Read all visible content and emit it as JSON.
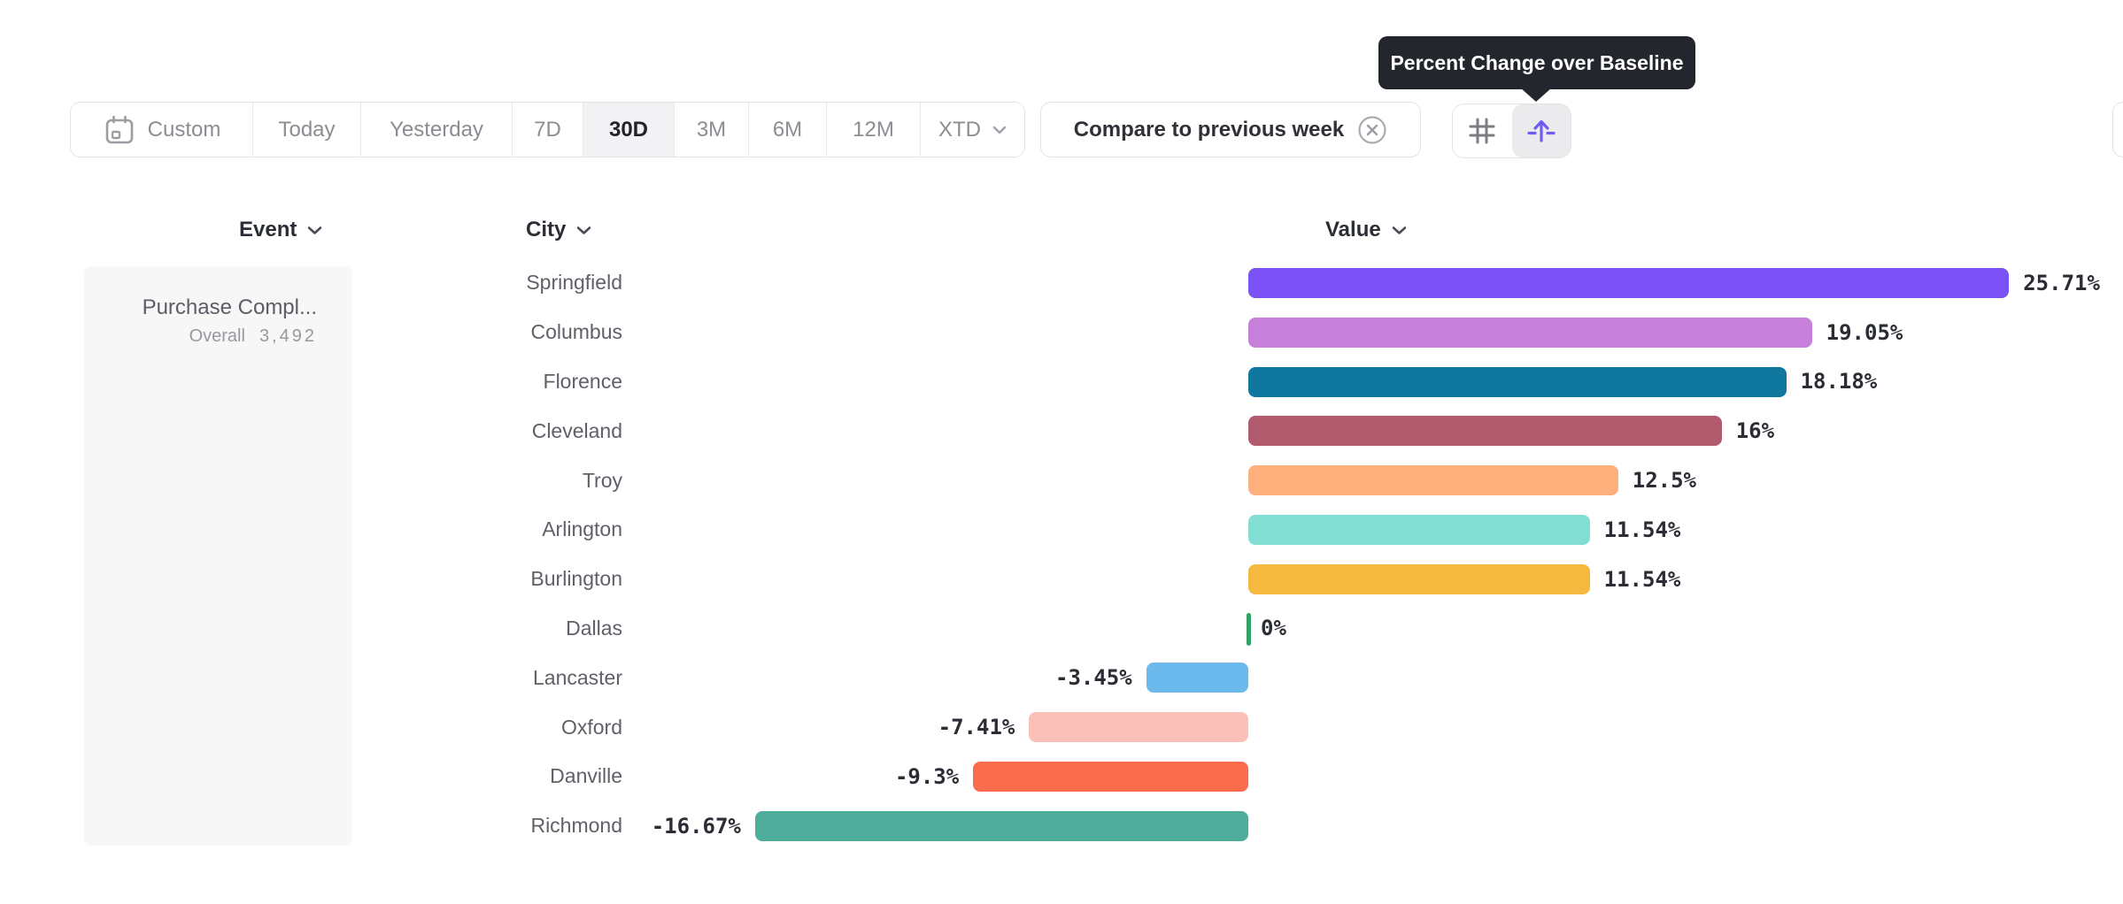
{
  "toolbar": {
    "date_ranges": [
      {
        "label": "Custom",
        "icon": "calendar",
        "selected": false
      },
      {
        "label": "Today",
        "selected": false
      },
      {
        "label": "Yesterday",
        "selected": false
      },
      {
        "label": "7D",
        "selected": false
      },
      {
        "label": "30D",
        "selected": true
      },
      {
        "label": "3M",
        "selected": false
      },
      {
        "label": "6M",
        "selected": false
      },
      {
        "label": "12M",
        "selected": false
      },
      {
        "label": "XTD",
        "selected": false,
        "has_dropdown": true
      }
    ],
    "compare_chip_label": "Compare to previous week",
    "view_modes": [
      {
        "name": "grid-view",
        "selected": false
      },
      {
        "name": "percent-change-view",
        "selected": true
      }
    ]
  },
  "tooltip_text": "Percent Change over Baseline",
  "columns": {
    "event": "Event",
    "city": "City",
    "value": "Value"
  },
  "event_panel": {
    "event_name": "Purchase Compl...",
    "overall_label": "Overall",
    "overall_value": "3,492"
  },
  "chart_data": {
    "type": "bar",
    "orientation": "horizontal",
    "title": "Percent Change over Baseline",
    "unit": "%",
    "categories": [
      "Springfield",
      "Columbus",
      "Florence",
      "Cleveland",
      "Troy",
      "Arlington",
      "Burlington",
      "Dallas",
      "Lancaster",
      "Oxford",
      "Danville",
      "Richmond"
    ],
    "values": [
      25.71,
      19.05,
      18.18,
      16,
      12.5,
      11.54,
      11.54,
      0,
      -3.45,
      -7.41,
      -9.3,
      -16.67
    ],
    "labels": [
      "25.71%",
      "19.05%",
      "18.18%",
      "16%",
      "12.5%",
      "11.54%",
      "11.54%",
      "0%",
      "-3.45%",
      "-7.41%",
      "-9.3%",
      "-16.67%"
    ],
    "colors": [
      "#7a52f5",
      "#c77fdc",
      "#10789f",
      "#b25a6e",
      "#fdb07c",
      "#82ded2",
      "#f4b93e",
      "#35a169",
      "#6cb9ed",
      "#fbc1b9",
      "#f96c4c",
      "#4fad9c"
    ],
    "baseline_value": 0,
    "axis_range": [
      -16.67,
      25.71
    ],
    "grid": false,
    "zero_tick_color": "#35a169"
  }
}
